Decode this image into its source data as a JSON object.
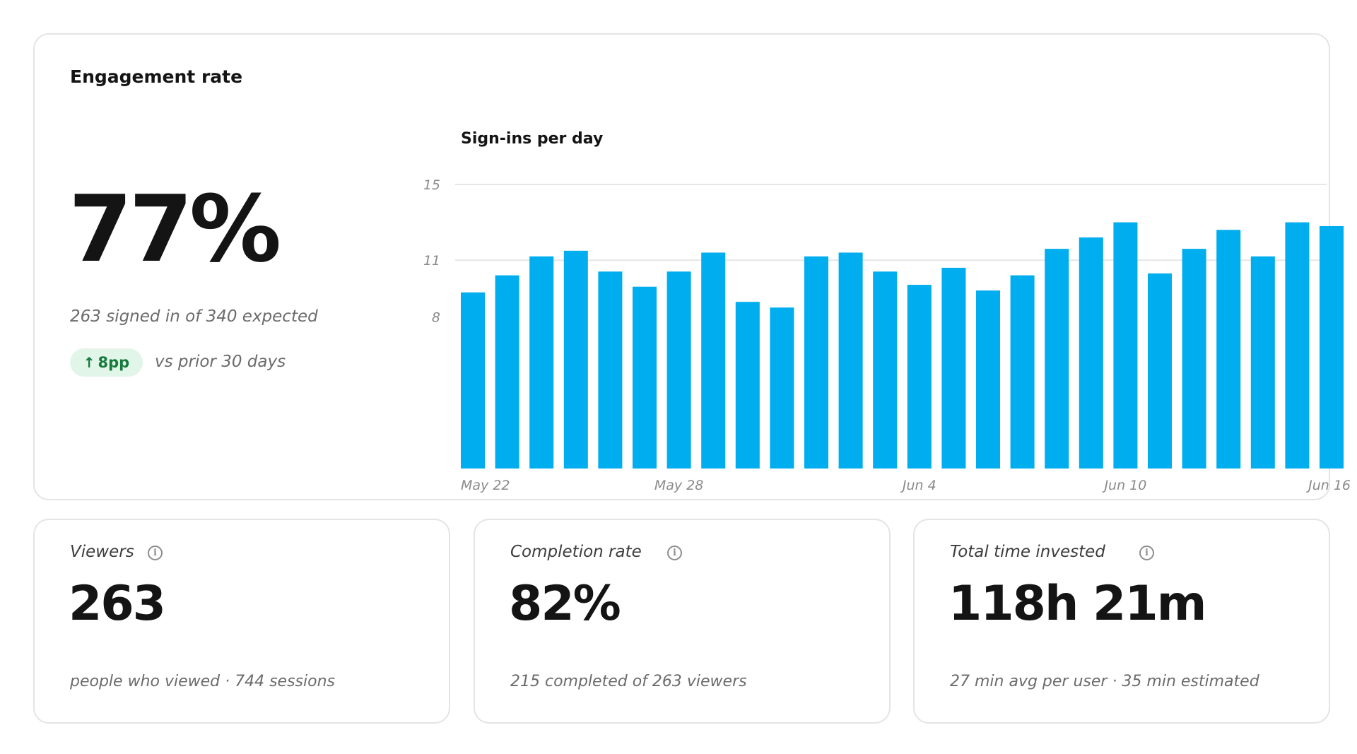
{
  "engagement": {
    "title": "Engagement rate",
    "value": "77%",
    "subtitle": "263 signed in of 340 expected",
    "delta": {
      "direction": "up",
      "icon": "arrow-up-icon",
      "value": "8pp",
      "comparison": "vs prior 30 days",
      "color": "#157a3c",
      "background": "#e2f5e9"
    }
  },
  "chart_data": {
    "type": "bar",
    "title": "Sign-ins per day",
    "xlabel": "",
    "ylabel": "",
    "color": "#00adef",
    "grid": true,
    "ylim": [
      0,
      15
    ],
    "yticks": [
      8,
      11,
      15
    ],
    "categories": [
      "May 22",
      "May 23",
      "May 24",
      "May 25",
      "May 26",
      "May 27",
      "May 28",
      "May 29",
      "May 30",
      "May 31",
      "Jun 1",
      "Jun 2",
      "Jun 3",
      "Jun 4",
      "Jun 5",
      "Jun 6",
      "Jun 7",
      "Jun 8",
      "Jun 9",
      "Jun 10",
      "Jun 11",
      "Jun 12",
      "Jun 13",
      "Jun 14",
      "Jun 15",
      "Jun 16"
    ],
    "values": [
      9.3,
      10.2,
      11.2,
      11.5,
      10.4,
      9.6,
      10.4,
      11.4,
      8.8,
      8.5,
      11.2,
      11.4,
      10.4,
      9.7,
      10.6,
      9.4,
      10.2,
      11.6,
      12.2,
      13.0,
      10.3,
      11.6,
      12.6,
      11.2,
      13.0,
      12.8
    ],
    "xtick_labels": [
      "May 22",
      "May 28",
      "Jun 4",
      "Jun 10",
      "Jun 16"
    ]
  },
  "stats": [
    {
      "label": "Viewers",
      "value": "263",
      "note": "people who viewed · 744 sessions",
      "icon": "info-icon"
    },
    {
      "label": "Completion rate",
      "value": "82%",
      "note": "215 completed of 263 viewers",
      "icon": "info-icon"
    },
    {
      "label": "Total time invested",
      "value": "118h 21m",
      "note": "27 min avg per user · 35 min estimated",
      "icon": "info-icon"
    }
  ]
}
